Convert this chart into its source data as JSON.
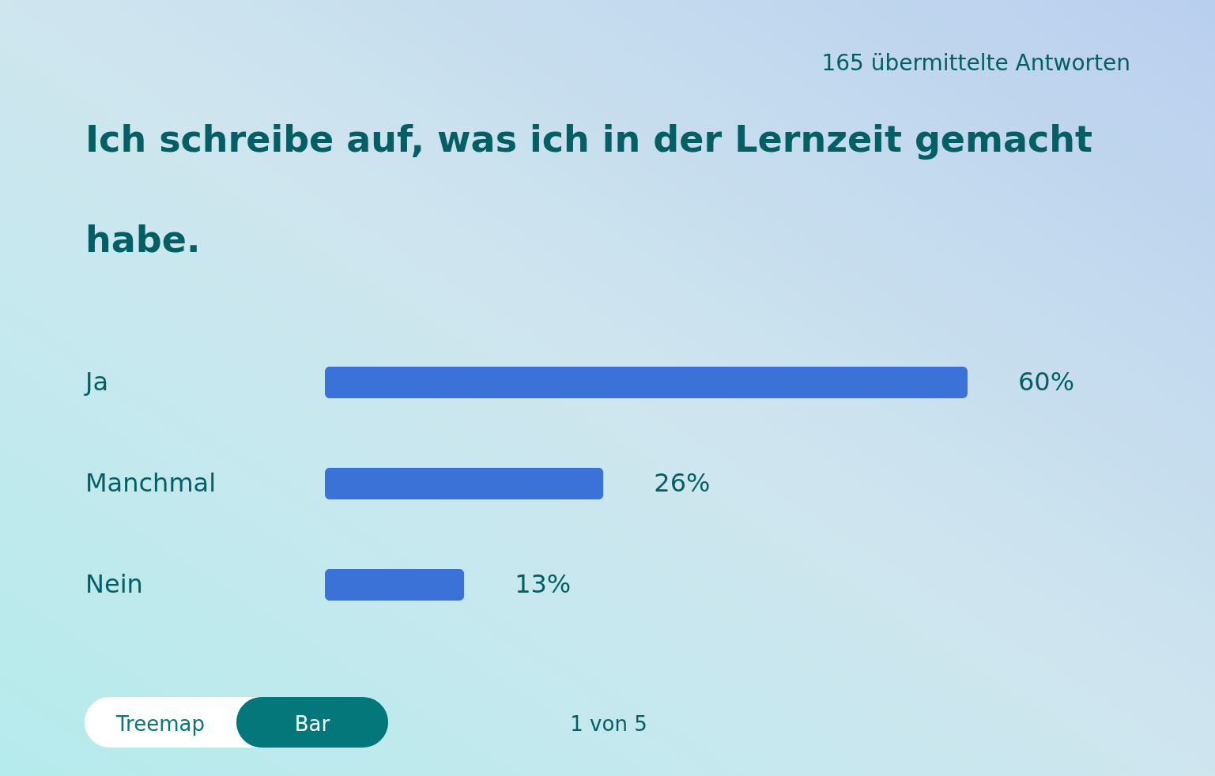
{
  "chart_data": {
    "type": "bar",
    "orientation": "horizontal",
    "title": "Ich schreibe auf, was ich in der Lernzeit gemacht habe.",
    "subtitle": "165 übermittelte Antworten",
    "categories": [
      "Ja",
      "Manchmal",
      "Nein"
    ],
    "values": [
      60,
      26,
      13
    ],
    "value_labels": [
      "60%",
      "26%",
      "13%"
    ],
    "color": "#3a72d8",
    "annotations": [
      "Treemap",
      "Bar",
      "1 von 5"
    ]
  }
}
